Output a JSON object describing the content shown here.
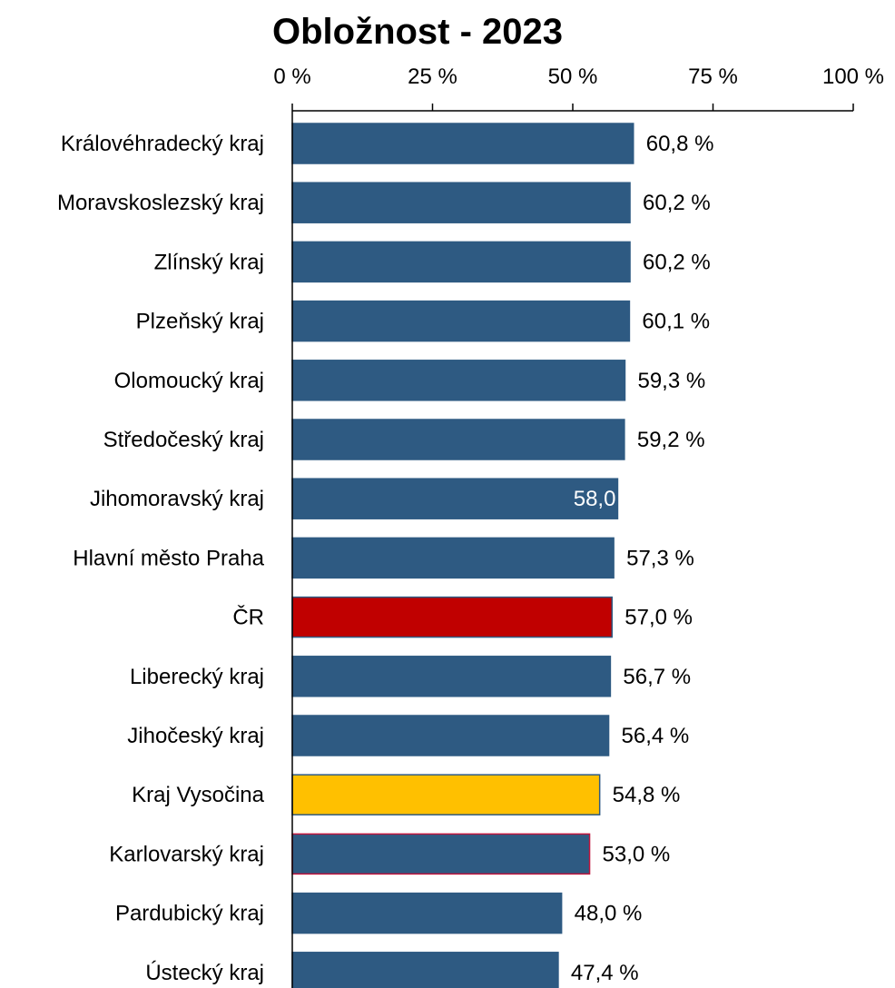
{
  "chart_data": {
    "type": "bar",
    "orientation": "horizontal",
    "title": "Obložnost - 2023",
    "xlabel": "",
    "ylabel": "",
    "xlim": [
      0,
      100
    ],
    "x_ticks": [
      "0 %",
      "25 %",
      "50 %",
      "75 %",
      "100 %"
    ],
    "x_tick_values": [
      0,
      25,
      50,
      75,
      100
    ],
    "axis_position": "top",
    "grid": false,
    "legend": "none",
    "categories": [
      "Královéhradecký kraj",
      "Moravskoslezský kraj",
      "Zlínský kraj",
      "Plzeňský kraj",
      "Olomoucký kraj",
      "Středočeský kraj",
      "Jihomoravský kraj",
      "Hlavní město Praha",
      "ČR",
      "Liberecký kraj",
      "Jihočeský kraj",
      "Kraj Vysočina",
      "Karlovarský kraj",
      "Pardubický kraj",
      "Ústecký kraj"
    ],
    "values": [
      60.8,
      60.2,
      60.2,
      60.1,
      59.3,
      59.2,
      58.0,
      57.3,
      57.0,
      56.7,
      56.4,
      54.8,
      53.0,
      48.0,
      47.4
    ],
    "data_labels": [
      "60,8 %",
      "60,2 %",
      "60,2 %",
      "60,1 %",
      "59,3 %",
      "59,2 %",
      "58,0",
      "57,3 %",
      "57,0 %",
      "56,7 %",
      "56,4 %",
      "54,8 %",
      "53,0 %",
      "48,0 %",
      "47,4 %"
    ],
    "bar_colors": [
      "#2e5a82",
      "#2e5a82",
      "#2e5a82",
      "#2e5a82",
      "#2e5a82",
      "#2e5a82",
      "#2e5a82",
      "#2e5a82",
      "#c00000",
      "#2e5a82",
      "#2e5a82",
      "#ffc000",
      "#2e5a82",
      "#2e5a82",
      "#2e5a82"
    ],
    "bar_outline_colors": [
      "#2e5a82",
      "#2e5a82",
      "#2e5a82",
      "#2e5a82",
      "#2e5a82",
      "#2e5a82",
      "#2e5a82",
      "#2e5a82",
      "#2e5a82",
      "#2e5a82",
      "#2e5a82",
      "#2e5a82",
      "#c0143c",
      "#2e5a82",
      "#2e5a82"
    ],
    "label_inside": [
      false,
      false,
      false,
      false,
      false,
      false,
      true,
      false,
      false,
      false,
      false,
      false,
      false,
      false,
      false
    ]
  }
}
